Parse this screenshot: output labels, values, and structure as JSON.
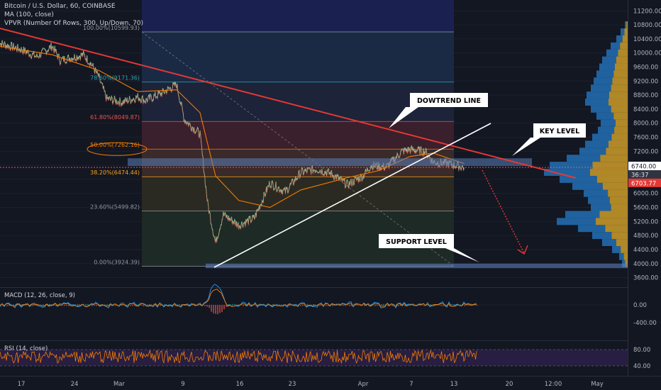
{
  "header": {
    "symbol_line": "Bitcoin / U.S. Dollar, 60, COINBASE",
    "ma_line": "MA (100, close)",
    "vpvr_line": "VPVR (Number Of Rows, 300, Up/Down, 70)"
  },
  "chart_data": {
    "type": "line",
    "price_axis": {
      "ticks": [
        "11200.00",
        "10800.00",
        "10400.00",
        "10000.00",
        "9600.00",
        "9200.00",
        "8800.00",
        "8400.00",
        "8000.00",
        "7600.00",
        "7200.00",
        "6800.00",
        "6400.00",
        "6000.00",
        "5600.00",
        "5200.00",
        "4800.00",
        "4400.00",
        "4000.00",
        "3600.00"
      ],
      "range": [
        3400,
        11400
      ],
      "current_price_label": "6740.00",
      "countdown_label": "36:37",
      "red_price_label": "6703.77"
    },
    "time_axis": {
      "labels": [
        "17",
        "24",
        "Mar",
        "9",
        "16",
        "23",
        "Apr",
        "7",
        "13",
        "20",
        "12:00",
        "May"
      ]
    },
    "fibonacci": [
      {
        "label": "100.00%(10599.93)",
        "price": 10599.93
      },
      {
        "label": "78.60%(9171.36)",
        "price": 9171.36
      },
      {
        "label": "61.80%(8049.87)",
        "price": 8049.87
      },
      {
        "label": "50.00%(7262.16)",
        "price": 7262.16
      },
      {
        "label": "38.20%(6474.44)",
        "price": 6474.44
      },
      {
        "label": "23.60%(5499.82)",
        "price": 5499.82
      },
      {
        "label": "0.00%(3924.39)",
        "price": 3924.39
      }
    ],
    "annotations": [
      {
        "text": "DOWTREND LINE"
      },
      {
        "text": "KEY LEVEL"
      },
      {
        "text": "SUPPORT LEVEL"
      }
    ],
    "macd": {
      "label": "MACD (12, 26, close, 9)",
      "ticks": [
        "0.00",
        "-400.00"
      ]
    },
    "rsi": {
      "label": "RSI (14, close)",
      "ticks": [
        "80.00",
        "40.00"
      ]
    },
    "price_series": [
      [
        "Feb 14",
        10300
      ],
      [
        "Feb 17",
        10100
      ],
      [
        "Feb 19",
        9900
      ],
      [
        "Feb 21",
        10200
      ],
      [
        "Feb 22",
        9800
      ],
      [
        "Feb 25",
        9950
      ],
      [
        "Feb 26",
        9700
      ],
      [
        "Feb 27",
        9300
      ],
      [
        "Feb 28",
        8700
      ],
      [
        "Mar 1",
        8600
      ],
      [
        "Mar 3",
        8750
      ],
      [
        "Mar 4",
        8650
      ],
      [
        "Mar 6",
        8850
      ],
      [
        "Mar 8",
        9100
      ],
      [
        "Mar 9",
        8100
      ],
      [
        "Mar 10",
        7900
      ],
      [
        "Mar 11",
        7700
      ],
      [
        "Mar 12",
        5700
      ],
      [
        "Mar 13",
        4600
      ],
      [
        "Mar 14",
        5400
      ],
      [
        "Mar 16",
        5100
      ],
      [
        "Mar 18",
        5300
      ],
      [
        "Mar 19",
        5800
      ],
      [
        "Mar 20",
        6300
      ],
      [
        "Mar 22",
        6050
      ],
      [
        "Mar 24",
        6600
      ],
      [
        "Mar 26",
        6700
      ],
      [
        "Mar 28",
        6550
      ],
      [
        "Mar 30",
        6250
      ],
      [
        "Apr 1",
        6500
      ],
      [
        "Apr 2",
        6800
      ],
      [
        "Apr 4",
        6750
      ],
      [
        "Apr 6",
        7200
      ],
      [
        "Apr 7",
        7250
      ],
      [
        "Apr 9",
        7200
      ],
      [
        "Apr 10",
        6900
      ],
      [
        "Apr 12",
        6850
      ],
      [
        "Apr 13",
        6800
      ],
      [
        "Apr 14",
        6740
      ]
    ],
    "ma100_series": [
      [
        "Feb 14",
        10200
      ],
      [
        "Feb 21",
        9950
      ],
      [
        "Feb 27",
        9500
      ],
      [
        "Mar 3",
        8900
      ],
      [
        "Mar 8",
        8950
      ],
      [
        "Mar 11",
        8300
      ],
      [
        "Mar 13",
        6500
      ],
      [
        "Mar 16",
        5800
      ],
      [
        "Mar 20",
        5600
      ],
      [
        "Mar 24",
        6100
      ],
      [
        "Mar 30",
        6450
      ],
      [
        "Apr 3",
        6650
      ],
      [
        "Apr 7",
        7050
      ],
      [
        "Apr 10",
        7150
      ],
      [
        "Apr 14",
        6850
      ]
    ]
  }
}
